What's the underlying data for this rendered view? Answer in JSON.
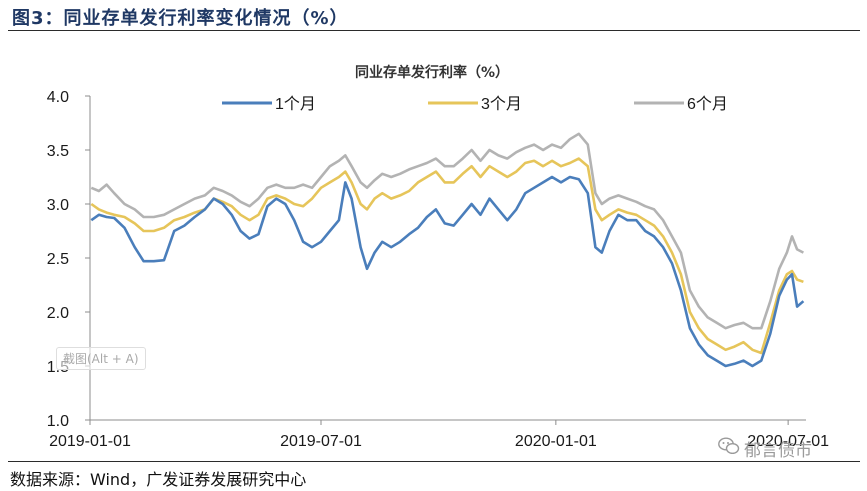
{
  "figure": {
    "title": "图3：同业存单发行利率变化情况（%）",
    "source": "数据来源：Wind，广发证券发展研究中心",
    "watermark_text": "截图(Alt + A)",
    "wechat_mark": "郁言债市",
    "wechat_icon": "wechat-icon"
  },
  "chart_data": {
    "type": "line",
    "title": "同业存单发行利率（%）",
    "xlabel": "",
    "ylabel": "",
    "ylim": [
      1.0,
      4.0
    ],
    "yticks": [
      "1.0",
      "1.5",
      "2.0",
      "2.5",
      "3.0",
      "3.5",
      "4.0"
    ],
    "xlim": [
      "2019-01-01",
      "2020-07-15"
    ],
    "xticks": [
      "2019-01-01",
      "2019-07-01",
      "2020-01-01",
      "2020-07-01"
    ],
    "grid": false,
    "legend_position": "top",
    "colors": {
      "1个月": "#4a7ebb",
      "3个月": "#e6c55a",
      "6个月": "#b3b3b3"
    },
    "series": [
      {
        "name": "1个月",
        "points": [
          [
            "2019-01-02",
            2.85
          ],
          [
            "2019-01-08",
            2.9
          ],
          [
            "2019-01-14",
            2.88
          ],
          [
            "2019-01-20",
            2.87
          ],
          [
            "2019-01-28",
            2.78
          ],
          [
            "2019-02-05",
            2.6
          ],
          [
            "2019-02-12",
            2.47
          ],
          [
            "2019-02-20",
            2.47
          ],
          [
            "2019-02-28",
            2.48
          ],
          [
            "2019-03-08",
            2.75
          ],
          [
            "2019-03-16",
            2.8
          ],
          [
            "2019-03-24",
            2.88
          ],
          [
            "2019-04-01",
            2.95
          ],
          [
            "2019-04-08",
            3.05
          ],
          [
            "2019-04-15",
            3.0
          ],
          [
            "2019-04-22",
            2.9
          ],
          [
            "2019-04-29",
            2.75
          ],
          [
            "2019-05-06",
            2.68
          ],
          [
            "2019-05-13",
            2.72
          ],
          [
            "2019-05-20",
            2.98
          ],
          [
            "2019-05-27",
            3.05
          ],
          [
            "2019-06-03",
            3.0
          ],
          [
            "2019-06-10",
            2.85
          ],
          [
            "2019-06-17",
            2.65
          ],
          [
            "2019-06-24",
            2.6
          ],
          [
            "2019-07-01",
            2.65
          ],
          [
            "2019-07-08",
            2.75
          ],
          [
            "2019-07-15",
            2.85
          ],
          [
            "2019-07-20",
            3.2
          ],
          [
            "2019-07-25",
            3.05
          ],
          [
            "2019-08-01",
            2.6
          ],
          [
            "2019-08-06",
            2.4
          ],
          [
            "2019-08-12",
            2.55
          ],
          [
            "2019-08-18",
            2.65
          ],
          [
            "2019-08-25",
            2.6
          ],
          [
            "2019-09-01",
            2.65
          ],
          [
            "2019-09-08",
            2.72
          ],
          [
            "2019-09-15",
            2.78
          ],
          [
            "2019-09-22",
            2.88
          ],
          [
            "2019-09-29",
            2.95
          ],
          [
            "2019-10-06",
            2.82
          ],
          [
            "2019-10-13",
            2.8
          ],
          [
            "2019-10-20",
            2.9
          ],
          [
            "2019-10-27",
            3.0
          ],
          [
            "2019-11-03",
            2.9
          ],
          [
            "2019-11-10",
            3.05
          ],
          [
            "2019-11-17",
            2.95
          ],
          [
            "2019-11-24",
            2.85
          ],
          [
            "2019-12-01",
            2.95
          ],
          [
            "2019-12-08",
            3.1
          ],
          [
            "2019-12-15",
            3.15
          ],
          [
            "2019-12-22",
            3.2
          ],
          [
            "2019-12-29",
            3.25
          ],
          [
            "2020-01-05",
            3.2
          ],
          [
            "2020-01-12",
            3.25
          ],
          [
            "2020-01-19",
            3.23
          ],
          [
            "2020-01-26",
            3.1
          ],
          [
            "2020-02-01",
            2.6
          ],
          [
            "2020-02-06",
            2.55
          ],
          [
            "2020-02-12",
            2.75
          ],
          [
            "2020-02-19",
            2.9
          ],
          [
            "2020-02-26",
            2.85
          ],
          [
            "2020-03-04",
            2.85
          ],
          [
            "2020-03-11",
            2.75
          ],
          [
            "2020-03-18",
            2.7
          ],
          [
            "2020-03-25",
            2.6
          ],
          [
            "2020-04-01",
            2.45
          ],
          [
            "2020-04-08",
            2.2
          ],
          [
            "2020-04-15",
            1.85
          ],
          [
            "2020-04-22",
            1.7
          ],
          [
            "2020-04-29",
            1.6
          ],
          [
            "2020-05-06",
            1.55
          ],
          [
            "2020-05-13",
            1.5
          ],
          [
            "2020-05-20",
            1.52
          ],
          [
            "2020-05-27",
            1.55
          ],
          [
            "2020-06-03",
            1.5
          ],
          [
            "2020-06-10",
            1.55
          ],
          [
            "2020-06-17",
            1.8
          ],
          [
            "2020-06-24",
            2.15
          ],
          [
            "2020-06-30",
            2.3
          ],
          [
            "2020-07-04",
            2.35
          ],
          [
            "2020-07-08",
            2.05
          ],
          [
            "2020-07-13",
            2.1
          ]
        ]
      },
      {
        "name": "3个月",
        "points": [
          [
            "2019-01-02",
            3.0
          ],
          [
            "2019-01-08",
            2.95
          ],
          [
            "2019-01-14",
            2.92
          ],
          [
            "2019-01-20",
            2.9
          ],
          [
            "2019-01-28",
            2.88
          ],
          [
            "2019-02-05",
            2.82
          ],
          [
            "2019-02-12",
            2.75
          ],
          [
            "2019-02-20",
            2.75
          ],
          [
            "2019-02-28",
            2.78
          ],
          [
            "2019-03-08",
            2.85
          ],
          [
            "2019-03-16",
            2.88
          ],
          [
            "2019-03-24",
            2.92
          ],
          [
            "2019-04-01",
            2.95
          ],
          [
            "2019-04-08",
            3.05
          ],
          [
            "2019-04-15",
            3.02
          ],
          [
            "2019-04-22",
            2.98
          ],
          [
            "2019-04-29",
            2.9
          ],
          [
            "2019-05-06",
            2.85
          ],
          [
            "2019-05-13",
            2.9
          ],
          [
            "2019-05-20",
            3.05
          ],
          [
            "2019-05-27",
            3.08
          ],
          [
            "2019-06-03",
            3.05
          ],
          [
            "2019-06-10",
            3.0
          ],
          [
            "2019-06-17",
            2.98
          ],
          [
            "2019-06-24",
            3.05
          ],
          [
            "2019-07-01",
            3.15
          ],
          [
            "2019-07-08",
            3.2
          ],
          [
            "2019-07-15",
            3.25
          ],
          [
            "2019-07-20",
            3.3
          ],
          [
            "2019-07-25",
            3.2
          ],
          [
            "2019-08-01",
            3.0
          ],
          [
            "2019-08-06",
            2.95
          ],
          [
            "2019-08-12",
            3.05
          ],
          [
            "2019-08-18",
            3.1
          ],
          [
            "2019-08-25",
            3.05
          ],
          [
            "2019-09-01",
            3.08
          ],
          [
            "2019-09-08",
            3.12
          ],
          [
            "2019-09-15",
            3.2
          ],
          [
            "2019-09-22",
            3.25
          ],
          [
            "2019-09-29",
            3.3
          ],
          [
            "2019-10-06",
            3.2
          ],
          [
            "2019-10-13",
            3.2
          ],
          [
            "2019-10-20",
            3.28
          ],
          [
            "2019-10-27",
            3.35
          ],
          [
            "2019-11-03",
            3.25
          ],
          [
            "2019-11-10",
            3.35
          ],
          [
            "2019-11-17",
            3.3
          ],
          [
            "2019-11-24",
            3.25
          ],
          [
            "2019-12-01",
            3.3
          ],
          [
            "2019-12-08",
            3.38
          ],
          [
            "2019-12-15",
            3.4
          ],
          [
            "2019-12-22",
            3.35
          ],
          [
            "2019-12-29",
            3.4
          ],
          [
            "2020-01-05",
            3.35
          ],
          [
            "2020-01-12",
            3.38
          ],
          [
            "2020-01-19",
            3.42
          ],
          [
            "2020-01-26",
            3.35
          ],
          [
            "2020-02-01",
            2.95
          ],
          [
            "2020-02-06",
            2.85
          ],
          [
            "2020-02-12",
            2.9
          ],
          [
            "2020-02-19",
            2.95
          ],
          [
            "2020-02-26",
            2.92
          ],
          [
            "2020-03-04",
            2.9
          ],
          [
            "2020-03-11",
            2.85
          ],
          [
            "2020-03-18",
            2.8
          ],
          [
            "2020-03-25",
            2.7
          ],
          [
            "2020-04-01",
            2.55
          ],
          [
            "2020-04-08",
            2.35
          ],
          [
            "2020-04-15",
            2.0
          ],
          [
            "2020-04-22",
            1.85
          ],
          [
            "2020-04-29",
            1.75
          ],
          [
            "2020-05-06",
            1.7
          ],
          [
            "2020-05-13",
            1.65
          ],
          [
            "2020-05-20",
            1.68
          ],
          [
            "2020-05-27",
            1.72
          ],
          [
            "2020-06-03",
            1.65
          ],
          [
            "2020-06-10",
            1.62
          ],
          [
            "2020-06-17",
            1.9
          ],
          [
            "2020-06-24",
            2.2
          ],
          [
            "2020-06-30",
            2.35
          ],
          [
            "2020-07-04",
            2.38
          ],
          [
            "2020-07-08",
            2.3
          ],
          [
            "2020-07-13",
            2.28
          ]
        ]
      },
      {
        "name": "6个月",
        "points": [
          [
            "2019-01-02",
            3.15
          ],
          [
            "2019-01-08",
            3.12
          ],
          [
            "2019-01-14",
            3.18
          ],
          [
            "2019-01-20",
            3.1
          ],
          [
            "2019-01-28",
            3.0
          ],
          [
            "2019-02-05",
            2.95
          ],
          [
            "2019-02-12",
            2.88
          ],
          [
            "2019-02-20",
            2.88
          ],
          [
            "2019-02-28",
            2.9
          ],
          [
            "2019-03-08",
            2.95
          ],
          [
            "2019-03-16",
            3.0
          ],
          [
            "2019-03-24",
            3.05
          ],
          [
            "2019-04-01",
            3.08
          ],
          [
            "2019-04-08",
            3.15
          ],
          [
            "2019-04-15",
            3.12
          ],
          [
            "2019-04-22",
            3.08
          ],
          [
            "2019-04-29",
            3.02
          ],
          [
            "2019-05-06",
            2.98
          ],
          [
            "2019-05-13",
            3.05
          ],
          [
            "2019-05-20",
            3.15
          ],
          [
            "2019-05-27",
            3.18
          ],
          [
            "2019-06-03",
            3.15
          ],
          [
            "2019-06-10",
            3.15
          ],
          [
            "2019-06-17",
            3.18
          ],
          [
            "2019-06-24",
            3.15
          ],
          [
            "2019-07-01",
            3.25
          ],
          [
            "2019-07-08",
            3.35
          ],
          [
            "2019-07-15",
            3.4
          ],
          [
            "2019-07-20",
            3.45
          ],
          [
            "2019-07-25",
            3.35
          ],
          [
            "2019-08-01",
            3.2
          ],
          [
            "2019-08-06",
            3.15
          ],
          [
            "2019-08-12",
            3.22
          ],
          [
            "2019-08-18",
            3.28
          ],
          [
            "2019-08-25",
            3.25
          ],
          [
            "2019-09-01",
            3.28
          ],
          [
            "2019-09-08",
            3.32
          ],
          [
            "2019-09-15",
            3.35
          ],
          [
            "2019-09-22",
            3.38
          ],
          [
            "2019-09-29",
            3.42
          ],
          [
            "2019-10-06",
            3.35
          ],
          [
            "2019-10-13",
            3.35
          ],
          [
            "2019-10-20",
            3.42
          ],
          [
            "2019-10-27",
            3.5
          ],
          [
            "2019-11-03",
            3.4
          ],
          [
            "2019-11-10",
            3.5
          ],
          [
            "2019-11-17",
            3.45
          ],
          [
            "2019-11-24",
            3.42
          ],
          [
            "2019-12-01",
            3.48
          ],
          [
            "2019-12-08",
            3.52
          ],
          [
            "2019-12-15",
            3.55
          ],
          [
            "2019-12-22",
            3.5
          ],
          [
            "2019-12-29",
            3.55
          ],
          [
            "2020-01-05",
            3.52
          ],
          [
            "2020-01-12",
            3.6
          ],
          [
            "2020-01-19",
            3.65
          ],
          [
            "2020-01-26",
            3.55
          ],
          [
            "2020-02-01",
            3.1
          ],
          [
            "2020-02-06",
            3.0
          ],
          [
            "2020-02-12",
            3.05
          ],
          [
            "2020-02-19",
            3.08
          ],
          [
            "2020-02-26",
            3.05
          ],
          [
            "2020-03-04",
            3.02
          ],
          [
            "2020-03-11",
            2.98
          ],
          [
            "2020-03-18",
            2.95
          ],
          [
            "2020-03-25",
            2.85
          ],
          [
            "2020-04-01",
            2.7
          ],
          [
            "2020-04-08",
            2.55
          ],
          [
            "2020-04-15",
            2.2
          ],
          [
            "2020-04-22",
            2.05
          ],
          [
            "2020-04-29",
            1.95
          ],
          [
            "2020-05-06",
            1.9
          ],
          [
            "2020-05-13",
            1.85
          ],
          [
            "2020-05-20",
            1.88
          ],
          [
            "2020-05-27",
            1.9
          ],
          [
            "2020-06-03",
            1.85
          ],
          [
            "2020-06-10",
            1.85
          ],
          [
            "2020-06-17",
            2.1
          ],
          [
            "2020-06-24",
            2.4
          ],
          [
            "2020-06-30",
            2.55
          ],
          [
            "2020-07-04",
            2.7
          ],
          [
            "2020-07-08",
            2.58
          ],
          [
            "2020-07-13",
            2.55
          ]
        ]
      }
    ]
  }
}
